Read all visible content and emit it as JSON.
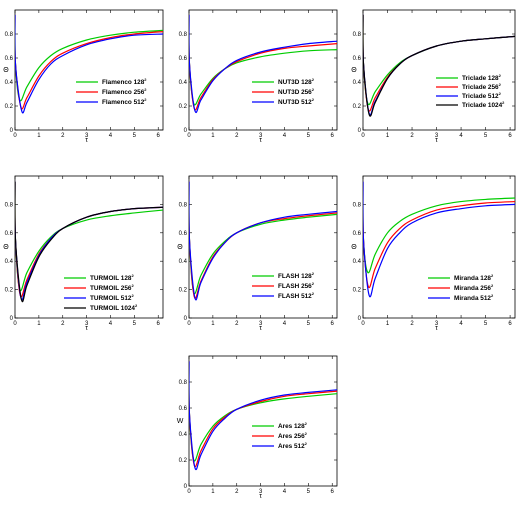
{
  "figure": {
    "panel_count": 7
  },
  "chart_data": [
    {
      "type": "line",
      "ylabel": "Θ",
      "xlabel": "τ",
      "xlim": [
        0,
        6.2
      ],
      "ylim": [
        0,
        1
      ],
      "x_ticks": [
        "0",
        "1",
        "2",
        "3",
        "4",
        "5",
        "6"
      ],
      "y_ticks": [
        "0",
        "0.2",
        "0.4",
        "0.6",
        "0.8"
      ],
      "legend_position": "right",
      "series": [
        {
          "name": "Flamenco 128",
          "res": "128",
          "sup": "2",
          "color": "#00cc00",
          "x": [
            0,
            0.02,
            0.2,
            0.5,
            1,
            1.5,
            2,
            3,
            4,
            5,
            6.2
          ],
          "y": [
            0.96,
            0.55,
            0.25,
            0.36,
            0.52,
            0.62,
            0.68,
            0.75,
            0.79,
            0.815,
            0.83
          ]
        },
        {
          "name": "Flamenco 256",
          "res": "256",
          "sup": "2",
          "color": "#ff0000",
          "x": [
            0,
            0.02,
            0.25,
            0.5,
            1,
            1.5,
            2,
            3,
            4,
            5,
            6.2
          ],
          "y": [
            0.96,
            0.55,
            0.19,
            0.27,
            0.45,
            0.57,
            0.64,
            0.72,
            0.77,
            0.8,
            0.82
          ]
        },
        {
          "name": "Flamenco 512",
          "res": "512",
          "sup": "2",
          "color": "#0000ff",
          "x": [
            0,
            0.02,
            0.28,
            0.5,
            1,
            1.5,
            2,
            3,
            4,
            5,
            6.2
          ],
          "y": [
            0.96,
            0.55,
            0.16,
            0.23,
            0.42,
            0.55,
            0.62,
            0.71,
            0.76,
            0.79,
            0.8
          ]
        }
      ]
    },
    {
      "type": "line",
      "ylabel": "",
      "xlabel": "τ",
      "xlim": [
        0,
        6.2
      ],
      "ylim": [
        0,
        1
      ],
      "x_ticks": [
        "0",
        "1",
        "2",
        "3",
        "4",
        "5",
        "6"
      ],
      "y_ticks": [
        "0",
        "0.2",
        "0.4",
        "0.6",
        "0.8"
      ],
      "legend_position": "right",
      "series": [
        {
          "name": "NUT3D 128",
          "res": "128",
          "sup": "2",
          "color": "#00cc00",
          "x": [
            0,
            0.02,
            0.2,
            0.5,
            1,
            1.5,
            2,
            3,
            4,
            5,
            6.2
          ],
          "y": [
            0.96,
            0.55,
            0.22,
            0.3,
            0.43,
            0.51,
            0.56,
            0.61,
            0.64,
            0.66,
            0.67
          ]
        },
        {
          "name": "NUT3D 256",
          "res": "256",
          "sup": "2",
          "color": "#ff0000",
          "x": [
            0,
            0.02,
            0.22,
            0.5,
            1,
            1.5,
            2,
            3,
            4,
            5,
            6.2
          ],
          "y": [
            0.96,
            0.55,
            0.18,
            0.27,
            0.42,
            0.51,
            0.57,
            0.64,
            0.68,
            0.7,
            0.72
          ]
        },
        {
          "name": "NUT3D 512",
          "res": "512",
          "sup": "2",
          "color": "#0000ff",
          "x": [
            0,
            0.02,
            0.25,
            0.5,
            1,
            1.5,
            2,
            3,
            4,
            5,
            6.2
          ],
          "y": [
            0.96,
            0.55,
            0.16,
            0.25,
            0.41,
            0.51,
            0.58,
            0.65,
            0.69,
            0.72,
            0.74
          ]
        }
      ]
    },
    {
      "type": "line",
      "ylabel": "Θ",
      "xlabel": "τ",
      "xlim": [
        0,
        6.2
      ],
      "ylim": [
        0,
        1
      ],
      "x_ticks": [
        "0",
        "1",
        "2",
        "3",
        "4",
        "5",
        "6"
      ],
      "y_ticks": [
        "0",
        "0.2",
        "0.4",
        "0.6",
        "0.8"
      ],
      "legend_position": "right",
      "series": [
        {
          "name": "Triclade 128",
          "res": "128",
          "sup": "2",
          "color": "#00cc00",
          "x": [
            0,
            0.02,
            0.2,
            0.5,
            1,
            1.5,
            2,
            3,
            4,
            5,
            6.2
          ],
          "y": [
            0.96,
            0.55,
            0.22,
            0.32,
            0.46,
            0.56,
            0.62,
            0.7,
            0.74,
            0.76,
            0.78
          ]
        },
        {
          "name": "Triclade 256",
          "res": "256",
          "sup": "2",
          "color": "#ff0000",
          "x": [
            0,
            0.02,
            0.22,
            0.5,
            1,
            1.5,
            2,
            3,
            4,
            5,
            6.2
          ],
          "y": [
            0.96,
            0.55,
            0.17,
            0.27,
            0.44,
            0.55,
            0.62,
            0.7,
            0.74,
            0.76,
            0.78
          ]
        },
        {
          "name": "Triclade 512",
          "res": "512",
          "sup": "2",
          "color": "#0000ff",
          "x": [
            0,
            0.02,
            0.25,
            0.5,
            1,
            1.5,
            2,
            3,
            4,
            5,
            6.2
          ],
          "y": [
            0.96,
            0.55,
            0.14,
            0.24,
            0.43,
            0.55,
            0.62,
            0.7,
            0.74,
            0.76,
            0.78
          ]
        },
        {
          "name": "Triclade 1024",
          "res": "1024",
          "sup": "2",
          "color": "#000000",
          "x": [
            0,
            0.02,
            0.25,
            0.5,
            1,
            1.5,
            2,
            3,
            4,
            5,
            6.2
          ],
          "y": [
            0.96,
            0.55,
            0.13,
            0.23,
            0.43,
            0.55,
            0.62,
            0.7,
            0.74,
            0.76,
            0.78
          ]
        }
      ]
    },
    {
      "type": "line",
      "ylabel": "Θ",
      "xlabel": "τ",
      "xlim": [
        0,
        6.2
      ],
      "ylim": [
        0,
        1
      ],
      "x_ticks": [
        "0",
        "1",
        "2",
        "3",
        "4",
        "5",
        "6"
      ],
      "y_ticks": [
        "0",
        "0.2",
        "0.4",
        "0.6",
        "0.8"
      ],
      "legend_position": "right",
      "series": [
        {
          "name": "TURMOIL 128",
          "res": "128",
          "sup": "2",
          "color": "#00cc00",
          "x": [
            0,
            0.02,
            0.2,
            0.5,
            1,
            1.5,
            2,
            3,
            4,
            5,
            6.2
          ],
          "y": [
            0.96,
            0.55,
            0.2,
            0.32,
            0.47,
            0.57,
            0.63,
            0.69,
            0.72,
            0.74,
            0.76
          ]
        },
        {
          "name": "TURMOIL 256",
          "res": "256",
          "sup": "2",
          "color": "#ff0000",
          "x": [
            0,
            0.02,
            0.22,
            0.5,
            1,
            1.5,
            2,
            3,
            4,
            5,
            6.2
          ],
          "y": [
            0.96,
            0.55,
            0.16,
            0.27,
            0.45,
            0.56,
            0.63,
            0.71,
            0.75,
            0.77,
            0.78
          ]
        },
        {
          "name": "TURMOIL 512",
          "res": "512",
          "sup": "2",
          "color": "#0000ff",
          "x": [
            0,
            0.02,
            0.25,
            0.5,
            1,
            1.5,
            2,
            3,
            4,
            5,
            6.2
          ],
          "y": [
            0.96,
            0.55,
            0.14,
            0.25,
            0.44,
            0.56,
            0.63,
            0.71,
            0.75,
            0.77,
            0.78
          ]
        },
        {
          "name": "TURMOIL 1024",
          "res": "1024",
          "sup": "2",
          "color": "#000000",
          "x": [
            0,
            0.02,
            0.27,
            0.5,
            1,
            1.5,
            2,
            3,
            4,
            5,
            6.2
          ],
          "y": [
            0.96,
            0.55,
            0.13,
            0.23,
            0.43,
            0.55,
            0.63,
            0.71,
            0.75,
            0.77,
            0.78
          ]
        }
      ]
    },
    {
      "type": "line",
      "ylabel": "Θ",
      "xlabel": "τ",
      "xlim": [
        0,
        6.2
      ],
      "ylim": [
        0,
        1
      ],
      "x_ticks": [
        "0",
        "1",
        "2",
        "3",
        "4",
        "5",
        "6"
      ],
      "y_ticks": [
        "0",
        "0.2",
        "0.4",
        "0.6",
        "0.8"
      ],
      "legend_position": "right",
      "series": [
        {
          "name": "FLASH 128",
          "res": "128",
          "sup": "2",
          "color": "#00cc00",
          "x": [
            0,
            0.02,
            0.2,
            0.5,
            1,
            1.5,
            2,
            3,
            4,
            5,
            6.2
          ],
          "y": [
            0.96,
            0.55,
            0.18,
            0.3,
            0.45,
            0.54,
            0.6,
            0.66,
            0.69,
            0.71,
            0.73
          ]
        },
        {
          "name": "FLASH 256",
          "res": "256",
          "sup": "2",
          "color": "#ff0000",
          "x": [
            0,
            0.02,
            0.22,
            0.5,
            1,
            1.5,
            2,
            3,
            4,
            5,
            6.2
          ],
          "y": [
            0.96,
            0.55,
            0.15,
            0.26,
            0.43,
            0.53,
            0.6,
            0.67,
            0.7,
            0.72,
            0.74
          ]
        },
        {
          "name": "FLASH 512",
          "res": "512",
          "sup": "2",
          "color": "#0000ff",
          "x": [
            0,
            0.02,
            0.25,
            0.5,
            1,
            1.5,
            2,
            3,
            4,
            5,
            6.2
          ],
          "y": [
            0.96,
            0.55,
            0.14,
            0.25,
            0.42,
            0.53,
            0.6,
            0.67,
            0.71,
            0.73,
            0.75
          ]
        }
      ]
    },
    {
      "type": "line",
      "ylabel": "Θ",
      "xlabel": "τ",
      "xlim": [
        0,
        6.2
      ],
      "ylim": [
        0,
        1
      ],
      "x_ticks": [
        "0",
        "1",
        "2",
        "3",
        "4",
        "5",
        "6"
      ],
      "y_ticks": [
        "0",
        "0.2",
        "0.4",
        "0.6",
        "0.8"
      ],
      "legend_position": "right",
      "series": [
        {
          "name": "Miranda 128",
          "res": "128",
          "sup": "2",
          "color": "#00cc00",
          "x": [
            0,
            0.02,
            0.2,
            0.5,
            1,
            1.5,
            2,
            3,
            4,
            5,
            6.2
          ],
          "y": [
            0.96,
            0.55,
            0.32,
            0.45,
            0.6,
            0.68,
            0.73,
            0.79,
            0.82,
            0.835,
            0.845
          ]
        },
        {
          "name": "Miranda 256",
          "res": "256",
          "sup": "2",
          "color": "#ff0000",
          "x": [
            0,
            0.02,
            0.22,
            0.5,
            1,
            1.5,
            2,
            3,
            4,
            5,
            6.2
          ],
          "y": [
            0.96,
            0.55,
            0.22,
            0.35,
            0.53,
            0.63,
            0.69,
            0.76,
            0.79,
            0.81,
            0.82
          ]
        },
        {
          "name": "Miranda 512",
          "res": "512",
          "sup": "2",
          "color": "#0000ff",
          "x": [
            0,
            0.02,
            0.25,
            0.5,
            1,
            1.5,
            2,
            3,
            4,
            5,
            6.2
          ],
          "y": [
            0.96,
            0.55,
            0.16,
            0.28,
            0.49,
            0.6,
            0.67,
            0.74,
            0.77,
            0.79,
            0.8
          ]
        }
      ]
    },
    {
      "type": "line",
      "ylabel": "W",
      "xlabel": "τ",
      "xlim": [
        0,
        6.2
      ],
      "ylim": [
        0,
        1
      ],
      "x_ticks": [
        "0",
        "1",
        "2",
        "3",
        "4",
        "5",
        "6"
      ],
      "y_ticks": [
        "0",
        "0.2",
        "0.4",
        "0.6",
        "0.8"
      ],
      "legend_position": "right",
      "series": [
        {
          "name": "Ares 128",
          "res": "128",
          "sup": "2",
          "color": "#00cc00",
          "x": [
            0,
            0.02,
            0.2,
            0.5,
            1,
            1.5,
            2,
            3,
            4,
            5,
            6.2
          ],
          "y": [
            0.96,
            0.55,
            0.2,
            0.32,
            0.46,
            0.54,
            0.59,
            0.64,
            0.67,
            0.69,
            0.71
          ]
        },
        {
          "name": "Ares 256",
          "res": "256",
          "sup": "2",
          "color": "#ff0000",
          "x": [
            0,
            0.02,
            0.22,
            0.5,
            1,
            1.5,
            2,
            3,
            4,
            5,
            6.2
          ],
          "y": [
            0.96,
            0.55,
            0.16,
            0.27,
            0.44,
            0.53,
            0.59,
            0.65,
            0.69,
            0.71,
            0.73
          ]
        },
        {
          "name": "Ares 512",
          "res": "512",
          "sup": "2",
          "color": "#0000ff",
          "x": [
            0,
            0.02,
            0.25,
            0.5,
            1,
            1.5,
            2,
            3,
            4,
            5,
            6.2
          ],
          "y": [
            0.96,
            0.55,
            0.14,
            0.24,
            0.42,
            0.52,
            0.59,
            0.66,
            0.7,
            0.72,
            0.74
          ]
        }
      ]
    }
  ]
}
